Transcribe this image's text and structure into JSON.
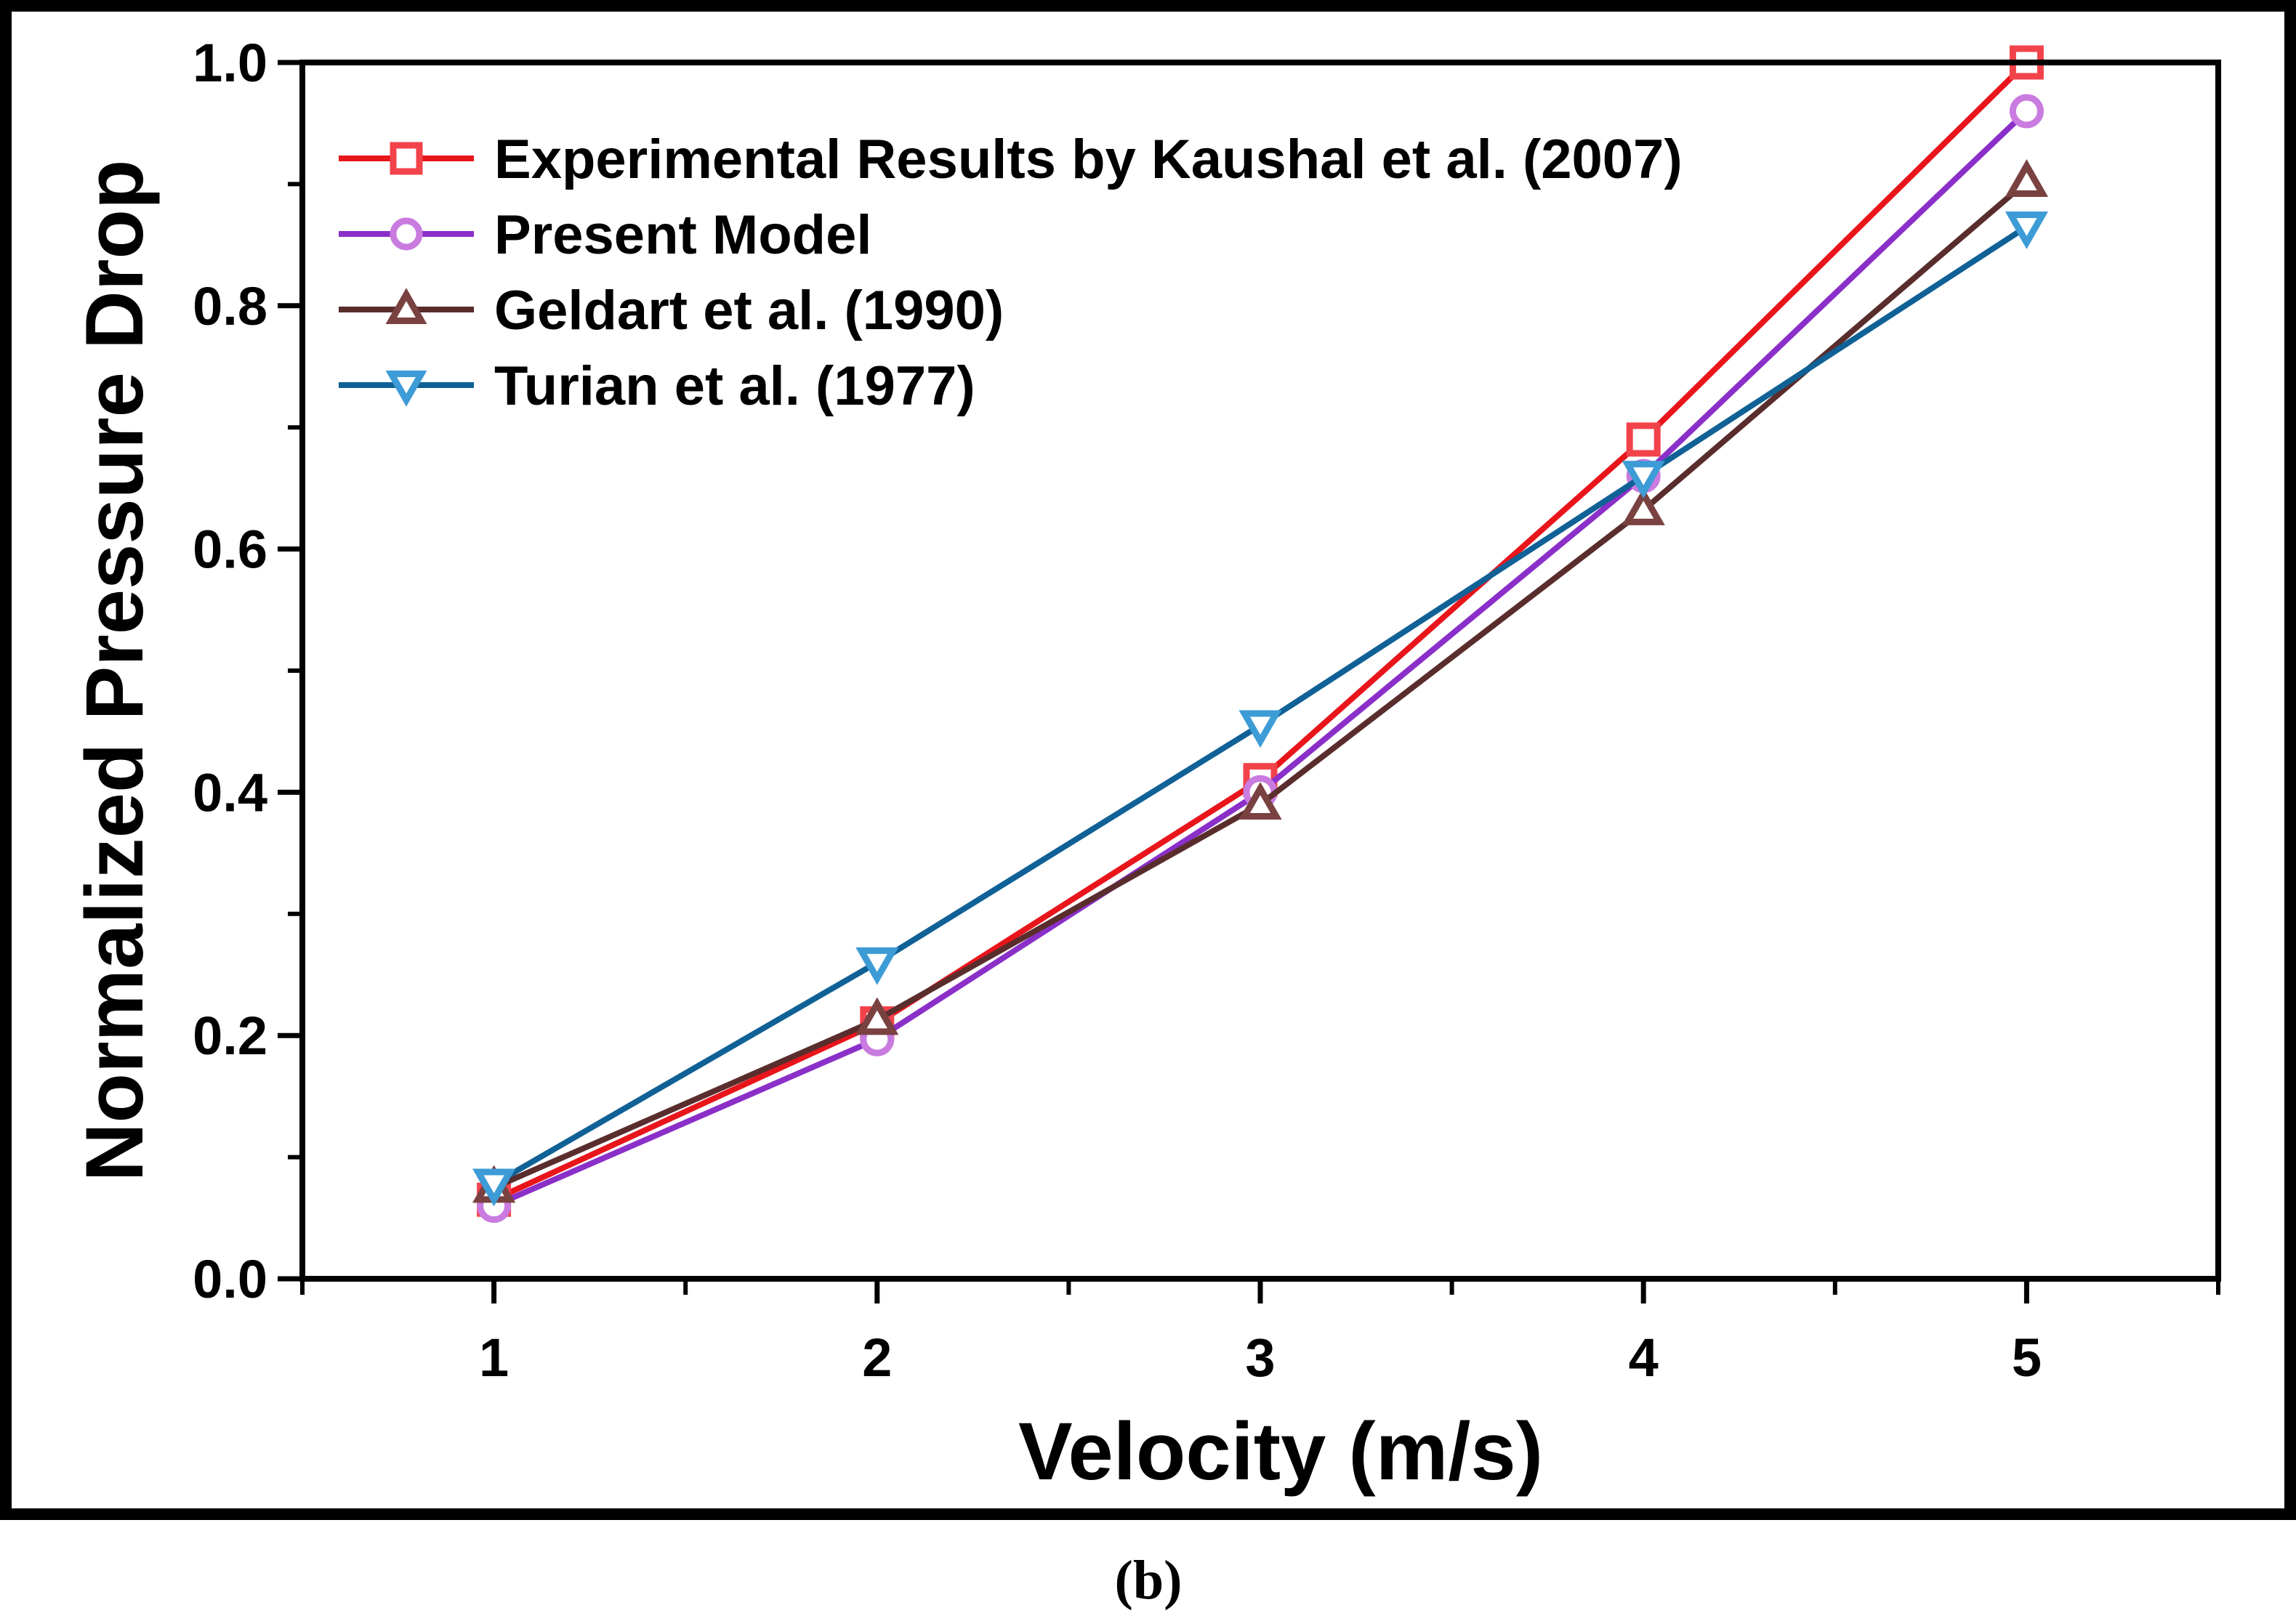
{
  "chart_data": {
    "type": "line",
    "title": "",
    "xlabel": "Velocity (m/s)",
    "ylabel": "Normalized Pressure Drop",
    "xlim": [
      0.5,
      5.5
    ],
    "ylim": [
      0.0,
      1.0
    ],
    "x": [
      1,
      2,
      3,
      4,
      5
    ],
    "xticks": [
      1,
      2,
      3,
      4,
      5
    ],
    "xtick_labels": [
      "1",
      "2",
      "3",
      "4",
      "5"
    ],
    "x_minor_ticks": [
      0.5,
      1.5,
      2.5,
      3.5,
      4.5,
      5.5
    ],
    "yticks": [
      0.0,
      0.2,
      0.4,
      0.6,
      0.8,
      1.0
    ],
    "ytick_labels": [
      "0.0",
      "0.2",
      "0.4",
      "0.6",
      "0.8",
      "1.0"
    ],
    "y_minor_ticks": [
      0.1,
      0.3,
      0.5,
      0.7,
      0.9
    ],
    "grid": false,
    "legend_position": "top-left",
    "series": [
      {
        "name": "Experimental Results by Kaushal et al. (2007)",
        "marker": "square",
        "line_color": "#e8151b",
        "marker_color": "#f2434b",
        "values": [
          0.065,
          0.21,
          0.41,
          0.69,
          1.0
        ]
      },
      {
        "name": "Present Model",
        "marker": "circle",
        "line_color": "#8b2fc9",
        "marker_color": "#c97be0",
        "values": [
          0.06,
          0.197,
          0.4,
          0.66,
          0.96
        ]
      },
      {
        "name": "Geldart et al. (1990)",
        "marker": "triangle-up",
        "line_color": "#5a2d2d",
        "marker_color": "#7a4141",
        "values": [
          0.075,
          0.213,
          0.39,
          0.632,
          0.902
        ]
      },
      {
        "name": "Turian et al. (1977)",
        "marker": "triangle-down",
        "line_color": "#0f6196",
        "marker_color": "#3d9bd6",
        "values": [
          0.078,
          0.26,
          0.455,
          0.66,
          0.865
        ]
      }
    ],
    "caption": "(b)"
  }
}
